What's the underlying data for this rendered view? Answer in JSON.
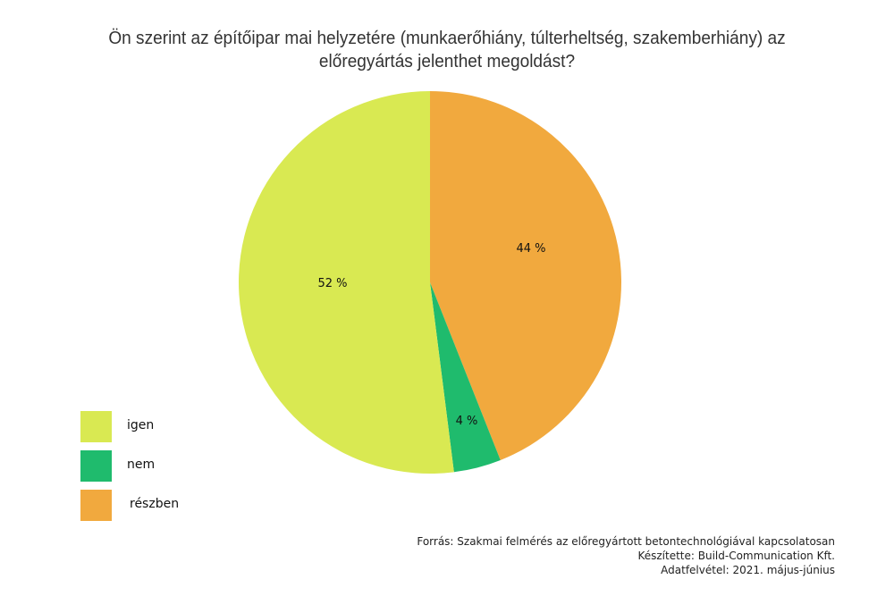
{
  "title": {
    "line1": "Ön szerint az építőipar mai helyzetére (munkaerőhiány, túlterheltség, szakemberhiány) az",
    "line2": "előregyártás jelenthet megoldást?"
  },
  "chart_data": {
    "type": "pie",
    "title": "Ön szerint az építőipar mai helyzetére (munkaerőhiány, túlterheltség, szakemberhiány) az előregyártás jelenthet megoldást?",
    "categories": [
      "részben",
      "nem",
      "igen"
    ],
    "values": [
      44,
      4,
      52
    ],
    "unit": "%",
    "colors": {
      "igen": "#d9e952",
      "nem": "#1fbb6d",
      "részben": "#f1a93e"
    },
    "start_angle": "12 o'clock, clockwise",
    "legend_position": "bottom-left"
  },
  "slices": [
    {
      "name": "részben",
      "value": 44,
      "label": "44 %",
      "color": "#f1a93e"
    },
    {
      "name": "nem",
      "value": 4,
      "label": "4 %",
      "color": "#1fbb6d"
    },
    {
      "name": "igen",
      "value": 52,
      "label": "52 %",
      "color": "#d9e952"
    }
  ],
  "legend": {
    "items": [
      {
        "label": "igen",
        "color": "#d9e952"
      },
      {
        "label": "nem",
        "color": "#1fbb6d"
      },
      {
        "label": "részben",
        "color": "#f1a93e"
      }
    ]
  },
  "footer": {
    "source": "Forrás: Szakmai felmérés az előregyártott betontechnológiával kapcsolatosan",
    "author": "Készítette: Build-Communication Kft.",
    "date": "Adatfelvétel: 2021. május-június"
  }
}
